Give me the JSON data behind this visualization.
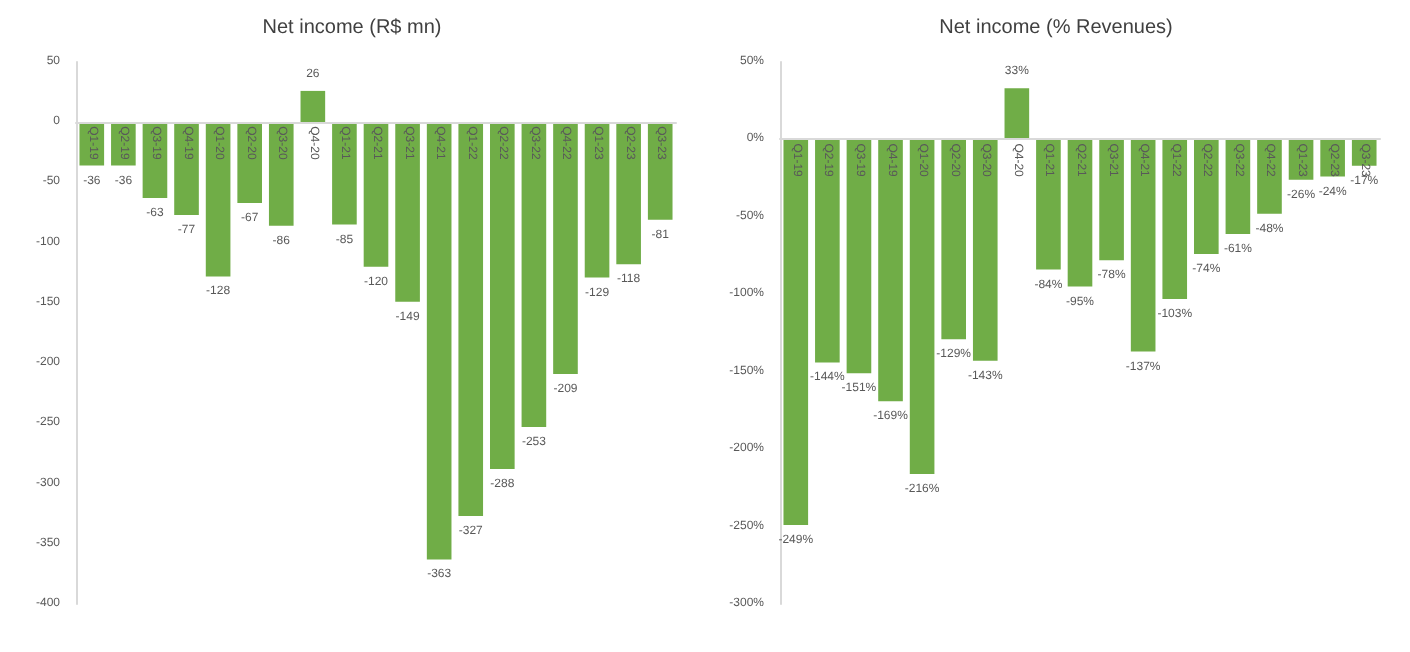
{
  "chart_data": [
    {
      "type": "bar",
      "title": "Net income (R$ mn)",
      "categories": [
        "Q1-19",
        "Q2-19",
        "Q3-19",
        "Q4-19",
        "Q1-20",
        "Q2-20",
        "Q3-20",
        "Q4-20",
        "Q1-21",
        "Q2-21",
        "Q3-21",
        "Q4-21",
        "Q1-22",
        "Q2-22",
        "Q3-22",
        "Q4-22",
        "Q1-23",
        "Q2-23",
        "Q3-23"
      ],
      "values": [
        -36,
        -36,
        -63,
        -77,
        -128,
        -67,
        -86,
        26,
        -85,
        -120,
        -149,
        -363,
        -327,
        -288,
        -253,
        -209,
        -129,
        -118,
        -81
      ],
      "color": "#70ad47",
      "ylim": [
        -400,
        50
      ],
      "yticks": [
        -400,
        -350,
        -300,
        -250,
        -200,
        -150,
        -100,
        -50,
        0,
        50
      ],
      "grid": false,
      "data_labels": true
    },
    {
      "type": "bar",
      "title": "Net income (% Revenues)",
      "categories": [
        "Q1-19",
        "Q2-19",
        "Q3-19",
        "Q4-19",
        "Q1-20",
        "Q2-20",
        "Q3-20",
        "Q4-20",
        "Q1-21",
        "Q2-21",
        "Q3-21",
        "Q4-21",
        "Q1-22",
        "Q2-22",
        "Q3-22",
        "Q4-22",
        "Q1-23",
        "Q2-23",
        "Q3-23"
      ],
      "values": [
        -249,
        -144,
        -151,
        -169,
        -216,
        -129,
        -143,
        33,
        -84,
        -95,
        -78,
        -137,
        -103,
        -74,
        -61,
        -48,
        -26,
        -24,
        -17
      ],
      "value_labels": [
        "-249%",
        "-144%",
        "-151%",
        "-169%",
        "-216%",
        "-129%",
        "-143%",
        "33%",
        "-84%",
        "-95%",
        "-78%",
        "-137%",
        "-103%",
        "-74%",
        "-61%",
        "-48%",
        "-26%",
        "-24%",
        "-17%"
      ],
      "color": "#70ad47",
      "ylim": [
        -300,
        50
      ],
      "yticks": [
        {
          "value": -300,
          "label": "-300%"
        },
        {
          "value": -250,
          "label": "-250%"
        },
        {
          "value": -200,
          "label": "-200%"
        },
        {
          "value": -150,
          "label": "-150%"
        },
        {
          "value": -100,
          "label": "-100%"
        },
        {
          "value": -50,
          "label": "-50%"
        },
        {
          "value": 0,
          "label": "0%"
        },
        {
          "value": 50,
          "label": "50%"
        }
      ],
      "grid": false
    }
  ]
}
